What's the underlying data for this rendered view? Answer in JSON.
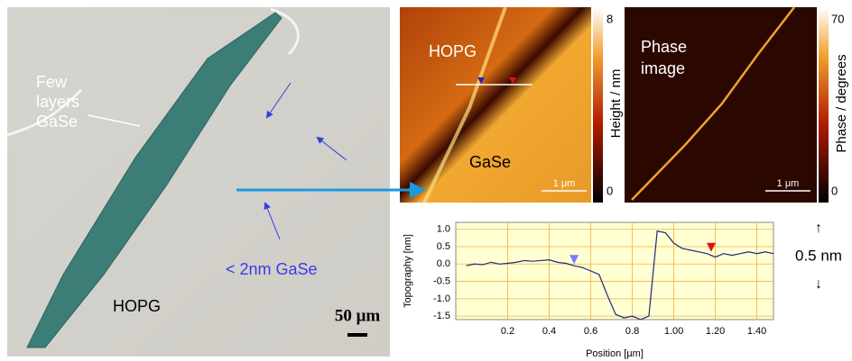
{
  "optical_image": {
    "flake_label": [
      "Few",
      "layers",
      "GaSe"
    ],
    "thin_label": "< 2nm GaSe",
    "substrate_label": "HOPG",
    "scale_bar": "50 μm"
  },
  "height_image": {
    "label_top": "HOPG",
    "label_bottom": "GaSe",
    "scale_bar": "1 μm",
    "colorbar_label": "Height / nm",
    "colorbar_ticks": [
      8,
      0
    ]
  },
  "phase_image": {
    "label": [
      "Phase",
      "image"
    ],
    "scale_bar": "1 μm",
    "colorbar_label": "Phase / degrees",
    "colorbar_ticks": [
      70,
      0
    ]
  },
  "scale_annotation": {
    "up": "↑",
    "text": "0.5 nm",
    "down": "↓"
  },
  "chart_data": {
    "type": "line",
    "xlabel": "Position [µm]",
    "ylabel": "Topography [nm]",
    "color": "#1a2a80",
    "x": [
      0,
      0.04,
      0.08,
      0.12,
      0.16,
      0.2,
      0.24,
      0.28,
      0.32,
      0.36,
      0.4,
      0.44,
      0.48,
      0.52,
      0.56,
      0.6,
      0.64,
      0.68,
      0.72,
      0.76,
      0.8,
      0.84,
      0.88,
      0.92,
      0.96,
      1.0,
      1.04,
      1.08,
      1.12,
      1.16,
      1.2,
      1.24,
      1.28,
      1.32,
      1.36,
      1.4,
      1.44,
      1.48
    ],
    "values": [
      -0.05,
      0,
      -0.02,
      0.05,
      0,
      0.02,
      0.05,
      0.1,
      0.08,
      0.1,
      0.12,
      0.05,
      0.02,
      -0.05,
      -0.1,
      -0.2,
      -0.3,
      -0.9,
      -1.45,
      -1.55,
      -1.5,
      -1.6,
      -1.5,
      0.95,
      0.9,
      0.6,
      0.45,
      0.4,
      0.35,
      0.3,
      0.2,
      0.3,
      0.25,
      0.3,
      0.35,
      0.3,
      0.35,
      0.3
    ],
    "xlim": [
      -0.05,
      1.48
    ],
    "ylim": [
      -1.6,
      1.2
    ],
    "xticks": [
      0.2,
      0.4,
      0.6,
      0.8,
      {
        "value": 1,
        "label": "1.00"
      },
      {
        "value": 1.2,
        "label": "1.20"
      },
      {
        "value": 1.4,
        "label": "1.40"
      }
    ],
    "yticks": [
      {
        "value": 1,
        "label": "1.0"
      },
      0.5,
      {
        "value": 0,
        "label": "0.0"
      },
      -0.5,
      {
        "value": -1,
        "label": "-1.0"
      },
      -1.5
    ],
    "grid": true,
    "markers": [
      {
        "x": 0.52,
        "color": "#7a7aff"
      },
      {
        "x": 1.18,
        "color": "#e01010"
      }
    ]
  }
}
